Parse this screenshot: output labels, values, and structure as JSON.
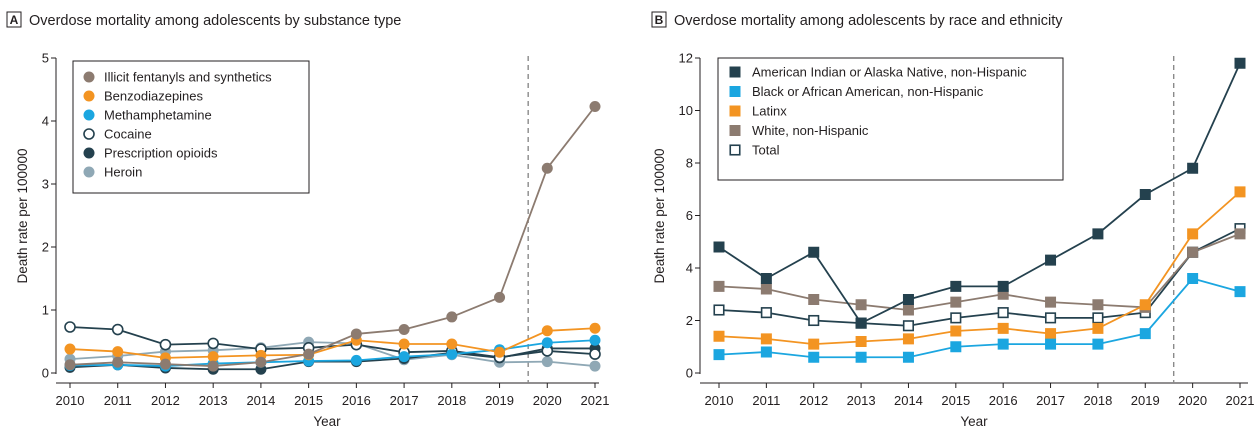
{
  "chart_data": [
    {
      "type": "line",
      "panel_letter": "A",
      "title": "Overdose mortality among adolescents by substance type",
      "xlabel": "Year",
      "ylabel": "Death rate per 100000",
      "x": [
        2010,
        2011,
        2012,
        2013,
        2014,
        2015,
        2016,
        2017,
        2018,
        2019,
        2020,
        2021
      ],
      "ylim": [
        0,
        5
      ],
      "yticks": [
        0,
        1,
        2,
        3,
        4,
        5
      ],
      "reference_line_x": 2019.6,
      "legend_position": "top-left",
      "series": [
        {
          "name": "Illicit fentanyls and synthetics",
          "color": "#8c7b70",
          "marker": "circle-filled",
          "values": [
            0.13,
            0.17,
            0.14,
            0.11,
            0.17,
            0.3,
            0.62,
            0.69,
            0.89,
            1.2,
            3.25,
            4.23
          ]
        },
        {
          "name": "Benzodiazepines",
          "color": "#f39422",
          "marker": "circle-filled",
          "values": [
            0.38,
            0.34,
            0.24,
            0.26,
            0.28,
            0.29,
            0.52,
            0.46,
            0.46,
            0.33,
            0.67,
            0.71
          ]
        },
        {
          "name": "Methamphetamine",
          "color": "#1ba6e0",
          "marker": "circle-filled",
          "values": [
            0.12,
            0.13,
            0.11,
            0.15,
            0.17,
            0.19,
            0.2,
            0.26,
            0.3,
            0.37,
            0.48,
            0.52
          ]
        },
        {
          "name": "Cocaine",
          "color": "#24414e",
          "marker": "circle-open",
          "values": [
            0.73,
            0.69,
            0.45,
            0.47,
            0.38,
            0.4,
            0.45,
            0.33,
            0.35,
            0.25,
            0.35,
            0.3
          ]
        },
        {
          "name": "Prescription opioids",
          "color": "#24414e",
          "marker": "circle-filled",
          "values": [
            0.09,
            0.13,
            0.08,
            0.06,
            0.06,
            0.18,
            0.18,
            0.23,
            0.32,
            0.24,
            0.39,
            0.39
          ]
        },
        {
          "name": "Heroin",
          "color": "#8fa8b5",
          "marker": "circle-filled",
          "values": [
            0.22,
            0.27,
            0.34,
            0.36,
            0.4,
            0.49,
            0.47,
            0.21,
            0.29,
            0.17,
            0.18,
            0.11
          ]
        }
      ]
    },
    {
      "type": "line",
      "panel_letter": "B",
      "title": "Overdose mortality among adolescents by race and ethnicity",
      "xlabel": "Year",
      "ylabel": "Death rate per 100000",
      "x": [
        2010,
        2011,
        2012,
        2013,
        2014,
        2015,
        2016,
        2017,
        2018,
        2019,
        2020,
        2021
      ],
      "ylim": [
        0,
        12
      ],
      "yticks": [
        0,
        2,
        4,
        6,
        8,
        10,
        12
      ],
      "reference_line_x": 2019.6,
      "legend_position": "top-left",
      "series": [
        {
          "name": "American Indian or Alaska Native, non-Hispanic",
          "color": "#24414e",
          "marker": "square-filled",
          "values": [
            4.8,
            3.6,
            4.6,
            1.9,
            2.8,
            3.3,
            3.3,
            4.3,
            5.3,
            6.8,
            7.8,
            11.8
          ]
        },
        {
          "name": "Black or African American, non-Hispanic",
          "color": "#1ba6e0",
          "marker": "square-filled",
          "values": [
            0.7,
            0.8,
            0.6,
            0.6,
            0.6,
            1.0,
            1.1,
            1.1,
            1.1,
            1.5,
            3.6,
            3.1
          ]
        },
        {
          "name": "Latinx",
          "color": "#f39422",
          "marker": "square-filled",
          "values": [
            1.4,
            1.3,
            1.1,
            1.2,
            1.3,
            1.6,
            1.7,
            1.5,
            1.7,
            2.6,
            5.3,
            6.9
          ]
        },
        {
          "name": "White, non-Hispanic",
          "color": "#8c7b70",
          "marker": "square-filled",
          "values": [
            3.3,
            3.2,
            2.8,
            2.6,
            2.4,
            2.7,
            3.0,
            2.7,
            2.6,
            2.5,
            4.6,
            5.3
          ]
        },
        {
          "name": "Total",
          "color": "#24414e",
          "marker": "square-open",
          "values": [
            2.4,
            2.3,
            2.0,
            1.9,
            1.8,
            2.1,
            2.3,
            2.1,
            2.1,
            2.3,
            4.6,
            5.5
          ]
        }
      ]
    }
  ]
}
